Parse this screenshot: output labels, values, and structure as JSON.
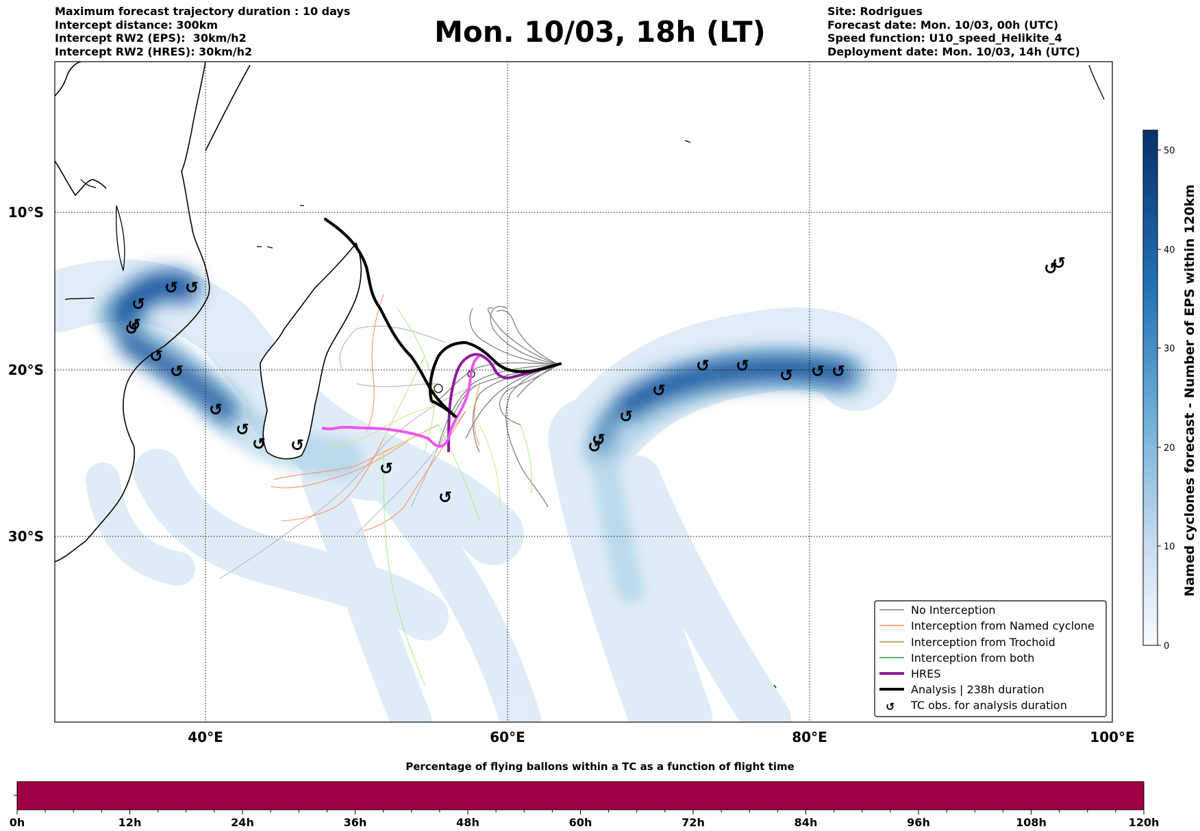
{
  "header": {
    "left": [
      "Maximum forecast trajectory duration : 10 days",
      "Intercept distance: 300km",
      "Intercept RW2 (EPS):  30km/h2",
      "Intercept RW2 (HRES): 30km/h2"
    ],
    "title": "Mon. 10/03, 18h (LT)",
    "right": [
      "Site: Rodrigues",
      "Forecast date: Mon. 10/03, 00h (UTC)",
      "Speed function: U10_speed_Helikite_4",
      "Deployment date: Mon. 10/03, 14h (UTC)"
    ]
  },
  "map": {
    "lon_labels": [
      "40°E",
      "60°E",
      "80°E",
      "100°E"
    ],
    "lat_labels": [
      "10°S",
      "20°S",
      "30°S"
    ],
    "tc_symbol": "↺"
  },
  "colorbar": {
    "title": "Named cyclones forecast - Number of EPS within 120km",
    "ticks": [
      "0",
      "10",
      "20",
      "30",
      "40",
      "50"
    ],
    "color_low": "#f7fbff",
    "color_high": "#08306b"
  },
  "legend": {
    "items": [
      {
        "label": "No Interception",
        "color": "#808080"
      },
      {
        "label": "Interception from Named cyclone",
        "color": "#fa8c5a"
      },
      {
        "label": "Interception from Trochoid",
        "color": "#9a9a2a"
      },
      {
        "label": "Interception from both",
        "color": "#2ca02c"
      },
      {
        "label": "HRES",
        "color": "#8e1a9e"
      },
      {
        "label": "Analysis | 238h duration",
        "color": "#000000"
      },
      {
        "label": "TC obs. for analysis duration",
        "color": "#000000"
      }
    ]
  },
  "bottom_bar": {
    "title": "Percentage of flying ballons within a TC as a function of flight time",
    "ticks": [
      "0h",
      "12h",
      "24h",
      "36h",
      "48h",
      "60h",
      "72h",
      "84h",
      "96h",
      "108h",
      "120h"
    ],
    "fill_color": "#9e0142"
  }
}
